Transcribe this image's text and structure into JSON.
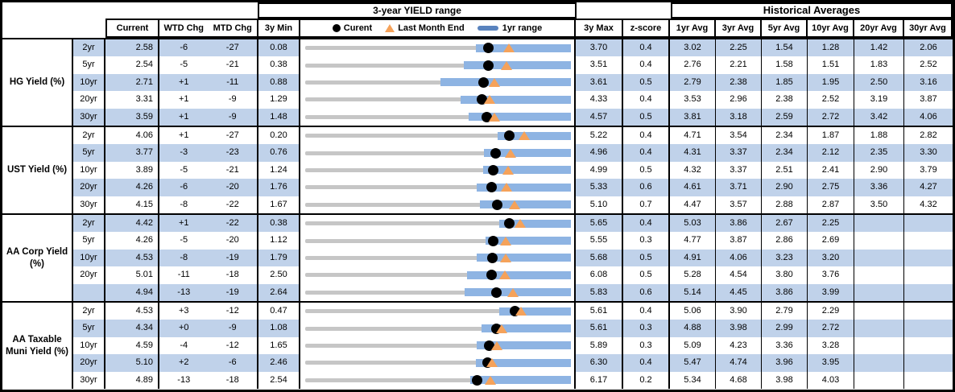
{
  "chart_data": {
    "type": "table",
    "title": "3-year YIELD range",
    "historical_title": "Historical Averages",
    "legend": {
      "current": "Curent",
      "last_month_end": "Last Month End",
      "range_1yr": "1yr range"
    },
    "columns": {
      "current": "Current",
      "wtd": "WTD Chg",
      "mtd": "MTD Chg",
      "min3y": "3y Min",
      "max3y": "3y Max",
      "zscore": "z-score"
    },
    "avg_headers": [
      "1yr Avg",
      "3yr Avg",
      "5yr Avg",
      "10yr Avg",
      "20yr Avg",
      "30yr Avg"
    ],
    "colors": {
      "stripe": "#C0D2EA",
      "range_bar": "#8EB4E3",
      "legend_dash": "#5983BE",
      "triangle": "#F5A25A",
      "track_gray": "#C6C6C6",
      "border": "#000000"
    },
    "groups": [
      {
        "label": "HG Yield (%)",
        "rows": [
          {
            "tenor": "2yr",
            "current": "2.58",
            "wtd": "-6",
            "mtd": "-27",
            "min": "0.08",
            "max": "3.70",
            "z": "0.4",
            "avgs": [
              "3.02",
              "2.25",
              "1.54",
              "1.28",
              "1.42",
              "2.06"
            ],
            "last_month_end": 2.85,
            "range1yr_low": 2.41
          },
          {
            "tenor": "5yr",
            "current": "2.54",
            "wtd": "-5",
            "mtd": "-21",
            "min": "0.38",
            "max": "3.51",
            "z": "0.4",
            "avgs": [
              "2.76",
              "2.21",
              "1.58",
              "1.51",
              "1.83",
              "2.52"
            ],
            "last_month_end": 2.75,
            "range1yr_low": 2.25
          },
          {
            "tenor": "10yr",
            "current": "2.71",
            "wtd": "+1",
            "mtd": "-11",
            "min": "0.88",
            "max": "3.61",
            "z": "0.5",
            "avgs": [
              "2.79",
              "2.38",
              "1.85",
              "1.95",
              "2.50",
              "3.16"
            ],
            "last_month_end": 2.82,
            "range1yr_low": 2.27
          },
          {
            "tenor": "20yr",
            "current": "3.31",
            "wtd": "+1",
            "mtd": "-9",
            "min": "1.29",
            "max": "4.33",
            "z": "0.4",
            "avgs": [
              "3.53",
              "2.96",
              "2.38",
              "2.52",
              "3.19",
              "3.87"
            ],
            "last_month_end": 3.4,
            "range1yr_low": 3.07
          },
          {
            "tenor": "30yr",
            "current": "3.59",
            "wtd": "+1",
            "mtd": "-9",
            "min": "1.48",
            "max": "4.57",
            "z": "0.5",
            "avgs": [
              "3.81",
              "3.18",
              "2.59",
              "2.72",
              "3.42",
              "4.06"
            ],
            "last_month_end": 3.68,
            "range1yr_low": 3.38
          }
        ]
      },
      {
        "label": "UST Yield (%)",
        "rows": [
          {
            "tenor": "2yr",
            "current": "4.06",
            "wtd": "+1",
            "mtd": "-27",
            "min": "0.20",
            "max": "5.22",
            "z": "0.4",
            "avgs": [
              "4.71",
              "3.54",
              "2.34",
              "1.87",
              "1.88",
              "2.82"
            ],
            "last_month_end": 4.33,
            "range1yr_low": 3.84
          },
          {
            "tenor": "5yr",
            "current": "3.77",
            "wtd": "-3",
            "mtd": "-23",
            "min": "0.76",
            "max": "4.96",
            "z": "0.4",
            "avgs": [
              "4.31",
              "3.37",
              "2.34",
              "2.12",
              "2.35",
              "3.30"
            ],
            "last_month_end": 4.0,
            "range1yr_low": 3.58
          },
          {
            "tenor": "10yr",
            "current": "3.89",
            "wtd": "-5",
            "mtd": "-21",
            "min": "1.24",
            "max": "4.99",
            "z": "0.5",
            "avgs": [
              "4.32",
              "3.37",
              "2.51",
              "2.41",
              "2.90",
              "3.79"
            ],
            "last_month_end": 4.1,
            "range1yr_low": 3.75
          },
          {
            "tenor": "20yr",
            "current": "4.26",
            "wtd": "-6",
            "mtd": "-20",
            "min": "1.76",
            "max": "5.33",
            "z": "0.6",
            "avgs": [
              "4.61",
              "3.71",
              "2.90",
              "2.75",
              "3.36",
              "4.27"
            ],
            "last_month_end": 4.46,
            "range1yr_low": 4.06
          },
          {
            "tenor": "30yr",
            "current": "4.15",
            "wtd": "-8",
            "mtd": "-22",
            "min": "1.67",
            "max": "5.10",
            "z": "0.7",
            "avgs": [
              "4.47",
              "3.57",
              "2.88",
              "2.87",
              "3.50",
              "4.32"
            ],
            "last_month_end": 4.37,
            "range1yr_low": 3.93
          }
        ]
      },
      {
        "label": "AA Corp Yield (%)",
        "rows": [
          {
            "tenor": "2yr",
            "current": "4.42",
            "wtd": "+1",
            "mtd": "-22",
            "min": "0.38",
            "max": "5.65",
            "z": "0.4",
            "avgs": [
              "5.03",
              "3.86",
              "2.67",
              "2.25",
              "",
              ""
            ],
            "last_month_end": 4.64,
            "range1yr_low": 4.22
          },
          {
            "tenor": "5yr",
            "current": "4.26",
            "wtd": "-5",
            "mtd": "-20",
            "min": "1.12",
            "max": "5.55",
            "z": "0.3",
            "avgs": [
              "4.77",
              "3.87",
              "2.86",
              "2.69",
              "",
              ""
            ],
            "last_month_end": 4.46,
            "range1yr_low": 4.12
          },
          {
            "tenor": "10yr",
            "current": "4.53",
            "wtd": "-8",
            "mtd": "-19",
            "min": "1.79",
            "max": "5.68",
            "z": "0.5",
            "avgs": [
              "4.91",
              "4.06",
              "3.23",
              "3.20",
              "",
              ""
            ],
            "last_month_end": 4.72,
            "range1yr_low": 4.3
          },
          {
            "tenor": "20yr",
            "current": "5.01",
            "wtd": "-11",
            "mtd": "-18",
            "min": "2.50",
            "max": "6.08",
            "z": "0.5",
            "avgs": [
              "5.28",
              "4.54",
              "3.80",
              "3.76",
              "",
              ""
            ],
            "last_month_end": 5.19,
            "range1yr_low": 4.68
          },
          {
            "tenor": "",
            "current": "4.94",
            "wtd": "-13",
            "mtd": "-19",
            "min": "2.64",
            "max": "5.83",
            "z": "0.6",
            "avgs": [
              "5.14",
              "4.45",
              "3.86",
              "3.99",
              "",
              ""
            ],
            "last_month_end": 5.13,
            "range1yr_low": 4.55
          }
        ]
      },
      {
        "label": "AA Taxable Muni Yield (%)",
        "rows": [
          {
            "tenor": "2yr",
            "current": "4.53",
            "wtd": "+3",
            "mtd": "-12",
            "min": "0.47",
            "max": "5.61",
            "z": "0.4",
            "avgs": [
              "5.06",
              "3.90",
              "2.79",
              "2.29",
              "",
              ""
            ],
            "last_month_end": 4.65,
            "range1yr_low": 4.22
          },
          {
            "tenor": "5yr",
            "current": "4.34",
            "wtd": "+0",
            "mtd": "-9",
            "min": "1.08",
            "max": "5.61",
            "z": "0.3",
            "avgs": [
              "4.88",
              "3.98",
              "2.99",
              "2.72",
              "",
              ""
            ],
            "last_month_end": 4.43,
            "range1yr_low": 4.09
          },
          {
            "tenor": "10yr",
            "current": "4.59",
            "wtd": "-4",
            "mtd": "-12",
            "min": "1.65",
            "max": "5.89",
            "z": "0.3",
            "avgs": [
              "5.09",
              "4.23",
              "3.36",
              "3.28",
              "",
              ""
            ],
            "last_month_end": 4.71,
            "range1yr_low": 4.39
          },
          {
            "tenor": "20yr",
            "current": "5.10",
            "wtd": "+2",
            "mtd": "-6",
            "min": "2.46",
            "max": "6.30",
            "z": "0.4",
            "avgs": [
              "5.47",
              "4.74",
              "3.96",
              "3.95",
              "",
              ""
            ],
            "last_month_end": 5.16,
            "range1yr_low": 4.93
          },
          {
            "tenor": "30yr",
            "current": "4.89",
            "wtd": "-13",
            "mtd": "-18",
            "min": "2.54",
            "max": "6.17",
            "z": "0.2",
            "avgs": [
              "5.34",
              "4.68",
              "3.98",
              "4.03",
              "",
              ""
            ],
            "last_month_end": 5.07,
            "range1yr_low": 4.79
          }
        ]
      }
    ]
  }
}
